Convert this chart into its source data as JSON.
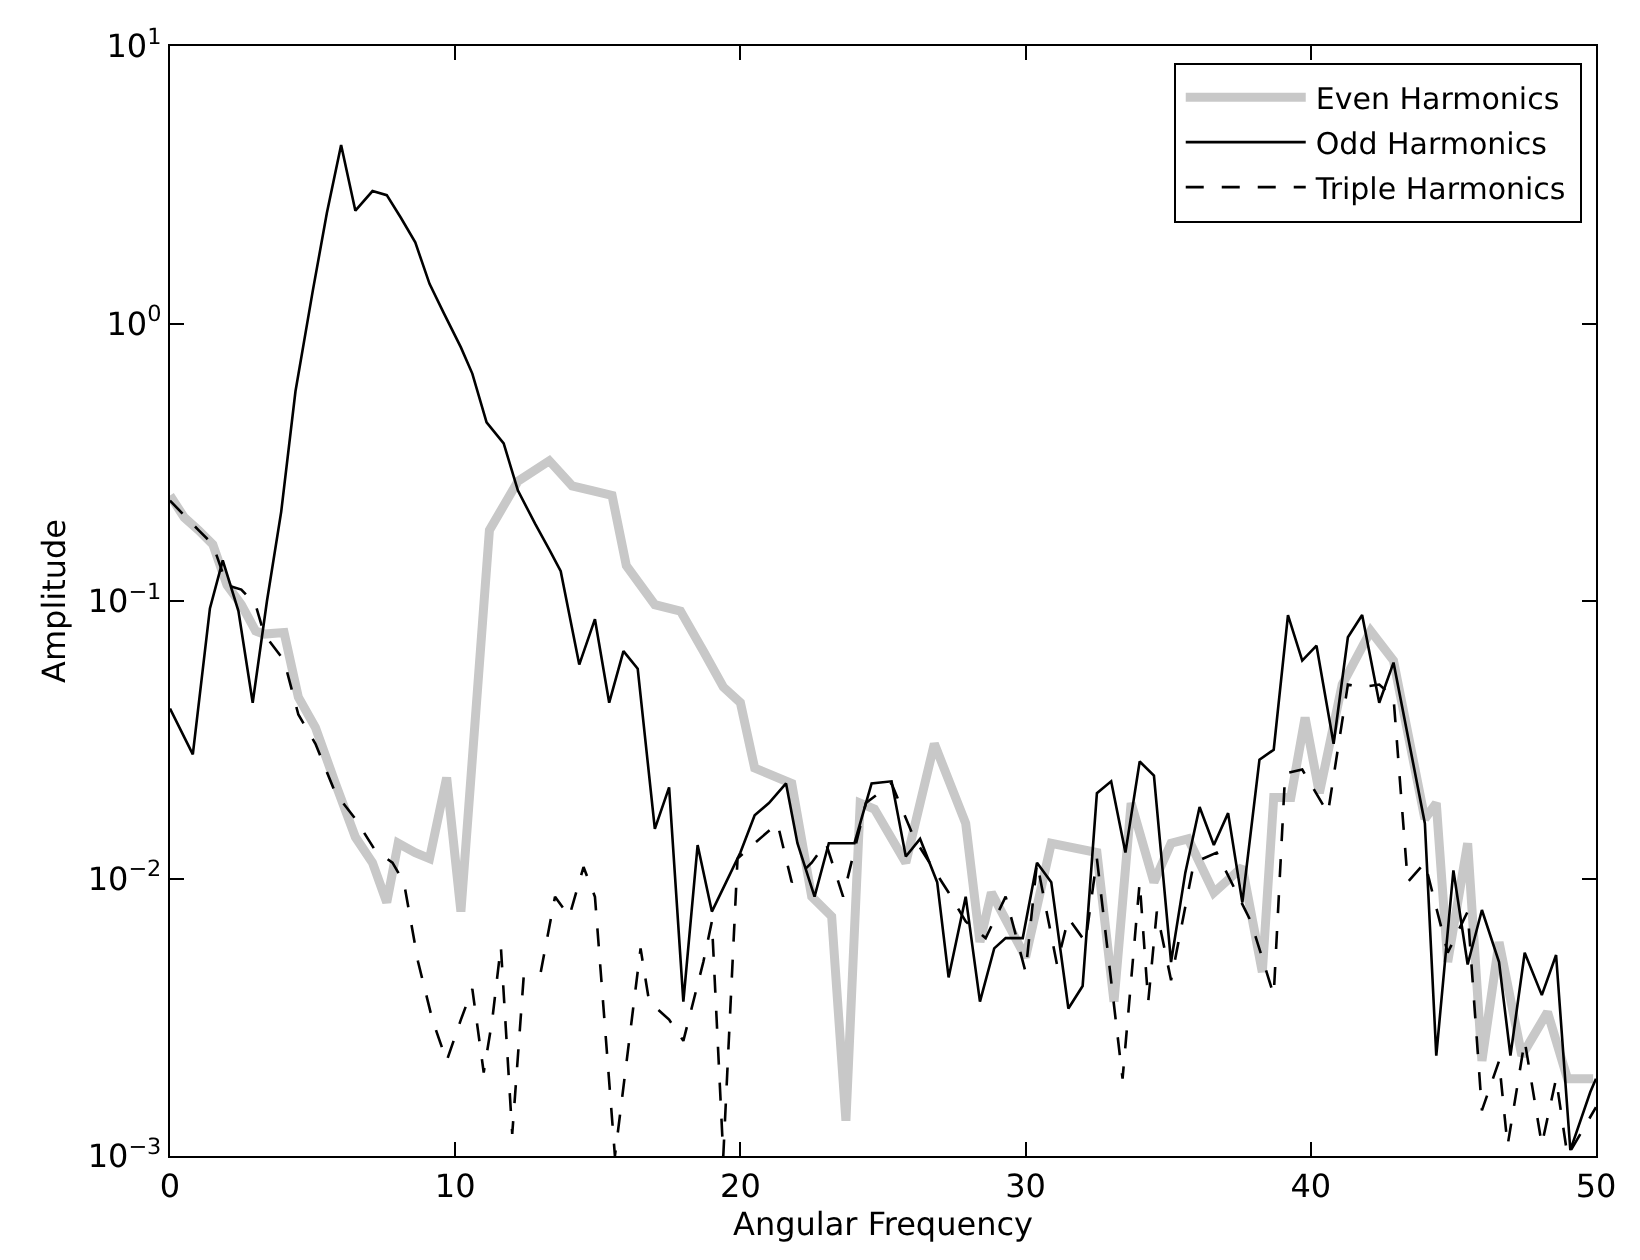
{
  "chart_data": {
    "type": "line",
    "xlabel": "Angular Frequency",
    "ylabel": "Amplitude",
    "log": "y",
    "legend": "top right",
    "marker": "none",
    "xlim": [
      0,
      50
    ],
    "xticks": [
      0,
      10,
      20,
      30,
      40,
      50
    ],
    "ylim": [
      0.001,
      10
    ],
    "yticks": [
      {
        "value": 0.001,
        "label": "10$^{−3}$"
      },
      {
        "value": 0.01,
        "label": "10$^{−2}$"
      },
      {
        "value": 0.1,
        "label": "10$^{−1}$"
      },
      {
        "value": 1,
        "label": "10$^{0}$"
      },
      {
        "value": 10,
        "label": "10$^{1}$"
      }
    ],
    "series": [
      {
        "name": "Even Harmonics",
        "color": "#c8c8c8",
        "line_style": "solid",
        "x": [
          0,
          0.5,
          1.0,
          1.5,
          2.0,
          2.5,
          3.0,
          3.3,
          4.0,
          4.5,
          5.1,
          5.8,
          6.5,
          7.1,
          7.6,
          8.0,
          8.6,
          9.1,
          9.7,
          10.2,
          11.2,
          12.2,
          13.3,
          14.1,
          14.8,
          15.5,
          16.0,
          17.0,
          17.9,
          18.7,
          19.4,
          20.0,
          20.5,
          21.8,
          22.5,
          23.2,
          23.7,
          24.2,
          24.7,
          25.8,
          26.8,
          27.9,
          28.4,
          28.8,
          30.0,
          30.9,
          32.5,
          33.1,
          33.7,
          34.5,
          35.1,
          35.7,
          36.6,
          37.6,
          38.3,
          38.7,
          39.3,
          39.8,
          40.3,
          41.1,
          42.1,
          42.9,
          44.0,
          44.4,
          44.8,
          45.5,
          46.0,
          46.6,
          47.4,
          48.3,
          49.0,
          49.9
        ],
        "values": [
          0.24,
          0.2,
          0.18,
          0.16,
          0.114,
          0.097,
          0.078,
          0.076,
          0.077,
          0.045,
          0.035,
          0.022,
          0.0141,
          0.0114,
          0.0082,
          0.0134,
          0.0124,
          0.0118,
          0.0231,
          0.0076,
          0.18,
          0.27,
          0.32,
          0.26,
          0.25,
          0.24,
          0.134,
          0.097,
          0.092,
          0.066,
          0.049,
          0.043,
          0.025,
          0.022,
          0.0086,
          0.0073,
          0.00134,
          0.0187,
          0.0178,
          0.0114,
          0.0306,
          0.0158,
          0.0059,
          0.0089,
          0.0052,
          0.0134,
          0.0124,
          0.0036,
          0.0187,
          0.0097,
          0.0134,
          0.0139,
          0.0089,
          0.011,
          0.0046,
          0.0196,
          0.0196,
          0.038,
          0.0203,
          0.05,
          0.078,
          0.061,
          0.0164,
          0.0187,
          0.005,
          0.0134,
          0.0022,
          0.0059,
          0.0023,
          0.0033,
          0.0019,
          0.0019
        ]
      },
      {
        "name": "Odd Harmonics",
        "color": "#000000",
        "line_style": "solid",
        "x": [
          0,
          0.8,
          1.4,
          1.85,
          2.4,
          2.9,
          3.4,
          3.9,
          4.4,
          5.0,
          5.5,
          6.0,
          6.5,
          7.1,
          7.6,
          8.1,
          8.6,
          9.1,
          9.6,
          10.2,
          10.6,
          11.1,
          11.7,
          12.2,
          12.8,
          13.3,
          13.7,
          14.35,
          14.9,
          15.4,
          15.9,
          16.4,
          17.0,
          17.5,
          18.0,
          18.5,
          19.0,
          19.5,
          20.0,
          20.5,
          21.0,
          21.6,
          22.0,
          22.6,
          23.1,
          24.0,
          24.6,
          25.3,
          25.8,
          26.3,
          26.9,
          27.3,
          27.9,
          28.4,
          28.9,
          29.3,
          29.9,
          30.4,
          30.9,
          31.5,
          32.0,
          32.5,
          33.0,
          33.5,
          34.0,
          34.5,
          35.1,
          35.6,
          36.1,
          36.6,
          37.1,
          37.6,
          38.2,
          38.7,
          39.2,
          39.7,
          40.2,
          40.8,
          41.3,
          41.8,
          42.4,
          42.9,
          44.0,
          44.4,
          45.0,
          45.5,
          46.0,
          46.6,
          47.0,
          47.5,
          48.1,
          48.6,
          49.1,
          49.8,
          50
        ],
        "values": [
          0.041,
          0.028,
          0.094,
          0.14,
          0.092,
          0.043,
          0.1,
          0.21,
          0.57,
          1.3,
          2.5,
          4.4,
          2.55,
          3.0,
          2.9,
          2.4,
          1.96,
          1.39,
          1.09,
          0.82,
          0.66,
          0.44,
          0.37,
          0.25,
          0.19,
          0.153,
          0.128,
          0.059,
          0.086,
          0.043,
          0.066,
          0.057,
          0.0151,
          0.0213,
          0.0036,
          0.0132,
          0.0076,
          0.0097,
          0.0124,
          0.0169,
          0.0187,
          0.022,
          0.0134,
          0.0086,
          0.0134,
          0.0134,
          0.022,
          0.0224,
          0.012,
          0.0139,
          0.0097,
          0.0044,
          0.0086,
          0.0036,
          0.0056,
          0.0061,
          0.0061,
          0.0114,
          0.0097,
          0.0034,
          0.0041,
          0.0203,
          0.0224,
          0.0124,
          0.0264,
          0.0235,
          0.005,
          0.0105,
          0.0181,
          0.0132,
          0.0172,
          0.0082,
          0.0268,
          0.0291,
          0.089,
          0.061,
          0.069,
          0.0306,
          0.074,
          0.089,
          0.043,
          0.06,
          0.0158,
          0.0023,
          0.0107,
          0.0049,
          0.0077,
          0.005,
          0.0023,
          0.0054,
          0.0038,
          0.0053,
          0.00105,
          0.0017,
          0.0019
        ]
      },
      {
        "name": "Triple Harmonics",
        "color": "#000000",
        "line_style": "dashed",
        "x": [
          0,
          1.0,
          1.5,
          2.0,
          2.5,
          3.0,
          3.3,
          4.0,
          4.5,
          5.1,
          5.8,
          6.5,
          7.2,
          7.8,
          8.2,
          8.7,
          9.2,
          9.7,
          10.2,
          10.6,
          11.0,
          11.3,
          11.6,
          12.0,
          12.4,
          13.0,
          13.5,
          14.0,
          14.5,
          14.9,
          15.6,
          16.5,
          16.8,
          17.5,
          18.0,
          18.7,
          19.0,
          19.4,
          19.9,
          20.5,
          21.3,
          21.8,
          22.5,
          23.0,
          23.6,
          24.4,
          25.3,
          26.1,
          27.3,
          27.9,
          28.6,
          29.3,
          30.0,
          30.4,
          31.1,
          31.5,
          32.1,
          32.5,
          33.4,
          34.0,
          34.3,
          34.6,
          35.1,
          35.9,
          36.7,
          37.9,
          38.7,
          39.1,
          39.7,
          40.6,
          41.3,
          41.8,
          42.4,
          42.9,
          43.4,
          44.0,
          44.8,
          45.5,
          46.0,
          46.6,
          46.9,
          47.5,
          48.1,
          48.6,
          49.0,
          50
        ],
        "values": [
          0.23,
          0.18,
          0.16,
          0.114,
          0.11,
          0.097,
          0.076,
          0.061,
          0.039,
          0.0306,
          0.0203,
          0.0164,
          0.0126,
          0.0114,
          0.0097,
          0.005,
          0.0031,
          0.0022,
          0.0031,
          0.004,
          0.002,
          0.0031,
          0.0057,
          0.0012,
          0.0044,
          0.0046,
          0.0086,
          0.0073,
          0.011,
          0.0086,
          0.001,
          0.0056,
          0.0036,
          0.0031,
          0.0026,
          0.005,
          0.007,
          0.001,
          0.0118,
          0.0134,
          0.0158,
          0.0097,
          0.0114,
          0.0134,
          0.0086,
          0.0187,
          0.022,
          0.0139,
          0.0089,
          0.007,
          0.0061,
          0.0086,
          0.0046,
          0.0114,
          0.0049,
          0.0072,
          0.0059,
          0.0118,
          0.0019,
          0.0097,
          0.0036,
          0.0076,
          0.0043,
          0.0114,
          0.0124,
          0.007,
          0.0038,
          0.0239,
          0.0247,
          0.0172,
          0.05,
          0.049,
          0.05,
          0.045,
          0.0097,
          0.0114,
          0.0054,
          0.0076,
          0.00146,
          0.0022,
          0.00109,
          0.0026,
          0.0011,
          0.0019,
          0.001,
          0.0015
        ]
      }
    ]
  }
}
